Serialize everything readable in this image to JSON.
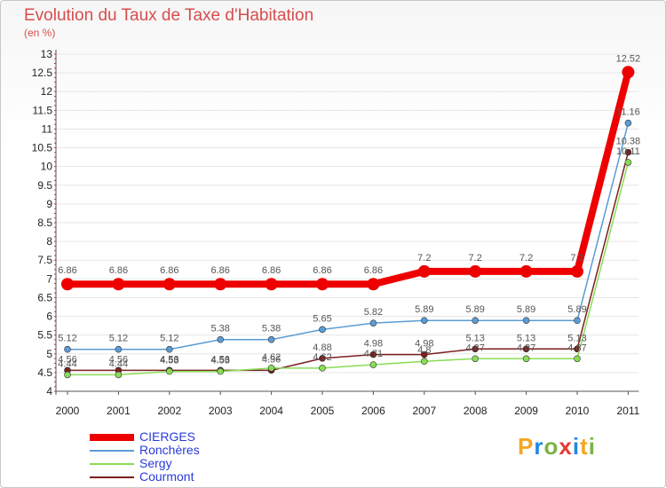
{
  "chart_data": {
    "type": "line",
    "title": "Evolution du Taux de Taxe d'Habitation",
    "subtitle": "(en %)",
    "xlabel": "",
    "ylabel": "",
    "ylim": [
      4,
      13
    ],
    "y_ticks": [
      "4",
      "4.5",
      "5",
      "5.5",
      "6",
      "6.5",
      "7",
      "7.5",
      "8",
      "8.5",
      "9",
      "9.5",
      "10",
      "10.5",
      "11",
      "11.5",
      "12",
      "12.5",
      "13"
    ],
    "categories": [
      "2000",
      "2001",
      "2002",
      "2003",
      "2004",
      "2005",
      "2006",
      "2007",
      "2008",
      "2009",
      "2010",
      "2011"
    ],
    "series": [
      {
        "name": "CIERGES",
        "color": "#ee0000",
        "values": [
          6.86,
          6.86,
          6.86,
          6.86,
          6.86,
          6.86,
          6.86,
          7.2,
          7.2,
          7.2,
          7.2,
          12.52
        ],
        "labels": [
          "6.86",
          "6.86",
          "6.86",
          "6.86",
          "6.86",
          "6.86",
          "6.86",
          "7.2",
          "7.2",
          "7.2",
          "7.2",
          "12.52"
        ]
      },
      {
        "name": "Ronchères",
        "color": "#5b9bd5",
        "values": [
          5.12,
          5.12,
          5.12,
          5.38,
          5.38,
          5.65,
          5.82,
          5.89,
          5.89,
          5.89,
          5.89,
          11.16
        ],
        "labels": [
          "5.12",
          "5.12",
          "5.12",
          "5.38",
          "5.38",
          "5.65",
          "5.82",
          "5.89",
          "5.89",
          "5.89",
          "5.89",
          "11.16"
        ]
      },
      {
        "name": "Sergy",
        "color": "#88dd55",
        "values": [
          4.44,
          4.44,
          4.53,
          4.53,
          4.62,
          4.62,
          4.71,
          4.8,
          4.87,
          4.87,
          4.87,
          10.11
        ],
        "labels": [
          "4.44",
          "4.44",
          "4.53",
          "4.53",
          "4.62",
          "4.62",
          "4.71",
          "4.8",
          "4.87",
          "4.87",
          "4.87",
          "10.11"
        ]
      },
      {
        "name": "Courmont",
        "color": "#7a1f1f",
        "values": [
          4.56,
          4.56,
          4.56,
          4.56,
          4.56,
          4.88,
          4.98,
          4.98,
          5.13,
          5.13,
          5.13,
          10.38
        ],
        "labels": [
          "4.56",
          "4.56",
          "4.56",
          "4.56",
          "4.56",
          "4.88",
          "4.98",
          "4.98",
          "5.13",
          "5.13",
          "5.13",
          "10.38"
        ]
      }
    ]
  },
  "legend": [
    {
      "name": "CIERGES",
      "color": "#ee0000"
    },
    {
      "name": "Ronchères",
      "color": "#5b9bd5"
    },
    {
      "name": "Sergy",
      "color": "#88dd55"
    },
    {
      "name": "Courmont",
      "color": "#7a1f1f"
    }
  ],
  "logo": {
    "text": "Proxiti",
    "letter_colors": [
      "#f5a623",
      "#1e88e5",
      "#7cb342",
      "#e53935",
      "#1e88e5",
      "#f5a623",
      "#7cb342"
    ]
  }
}
